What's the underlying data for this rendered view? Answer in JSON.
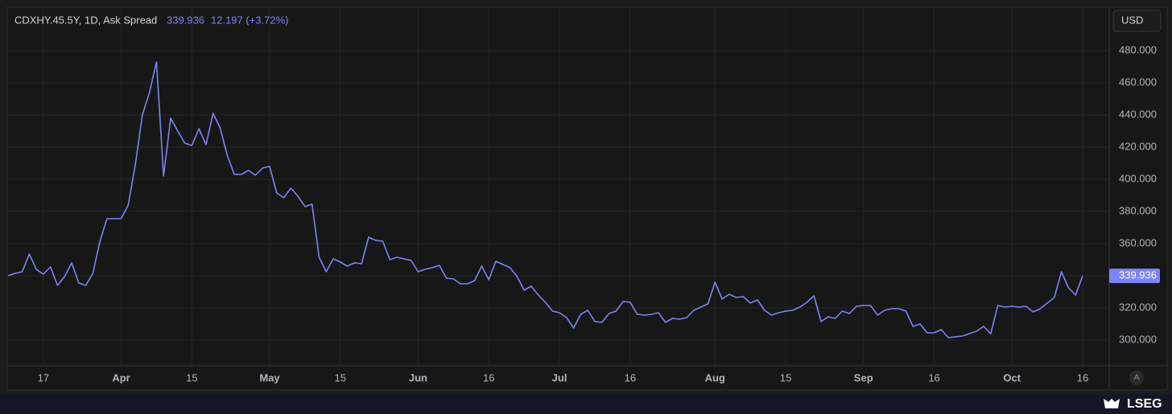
{
  "chart_data": {
    "type": "line",
    "title": "CDXHY.45.5Y, 1D, Ask Spread",
    "change": "12.197 (+3.72%)",
    "currency": "USD",
    "scale_button": "A",
    "brand": "LSEG",
    "categories": [
      null,
      null,
      null,
      null,
      null,
      "17",
      null,
      null,
      null,
      null,
      null,
      null,
      null,
      null,
      null,
      null,
      "Apr",
      null,
      null,
      null,
      null,
      null,
      null,
      null,
      null,
      null,
      "15",
      null,
      null,
      null,
      null,
      null,
      null,
      null,
      null,
      null,
      null,
      "May",
      null,
      null,
      null,
      null,
      null,
      null,
      null,
      null,
      null,
      "15",
      null,
      null,
      null,
      null,
      null,
      null,
      null,
      null,
      null,
      null,
      "Jun",
      null,
      null,
      null,
      null,
      null,
      null,
      null,
      null,
      null,
      "16",
      null,
      null,
      null,
      null,
      null,
      null,
      null,
      null,
      null,
      "Jul",
      null,
      null,
      null,
      null,
      null,
      null,
      null,
      null,
      null,
      "16",
      null,
      null,
      null,
      null,
      null,
      null,
      null,
      null,
      null,
      null,
      null,
      "Aug",
      null,
      null,
      null,
      null,
      null,
      null,
      null,
      null,
      null,
      "15",
      null,
      null,
      null,
      null,
      null,
      null,
      null,
      null,
      null,
      null,
      "Sep",
      null,
      null,
      null,
      null,
      null,
      null,
      null,
      null,
      null,
      "16",
      null,
      null,
      null,
      null,
      null,
      null,
      null,
      null,
      null,
      null,
      "Oct",
      null,
      null,
      null,
      null,
      null,
      null,
      null,
      null,
      null,
      "16"
    ],
    "series": [
      {
        "name": "CDXHY.45.5Y",
        "color": "#7b83f5",
        "values": [
          340,
          341.5,
          342.5,
          353.5,
          344,
          341,
          345.5,
          334,
          339.5,
          348,
          335.5,
          334,
          341.5,
          361.5,
          375.5,
          375.5,
          375.5,
          384,
          409,
          440,
          454,
          473,
          402,
          438,
          430,
          422.5,
          421,
          431.5,
          421.5,
          441,
          432,
          415,
          403,
          403,
          405.5,
          402.5,
          407,
          408,
          391.5,
          388.5,
          394.5,
          389.5,
          383,
          384.5,
          351.5,
          342.5,
          350.5,
          348.5,
          346,
          348,
          347.5,
          364,
          362,
          361.5,
          350,
          351.5,
          350.5,
          349.5,
          342.5,
          344,
          345,
          346.5,
          338.5,
          338,
          335,
          335,
          337,
          346,
          337.5,
          349,
          347,
          345,
          339.5,
          331,
          333.5,
          328,
          323.5,
          318,
          317,
          314,
          307.5,
          316,
          318.5,
          311.5,
          311,
          316.5,
          318,
          324,
          323.5,
          316,
          315.5,
          316,
          317,
          311,
          313.5,
          313,
          314,
          318.5,
          320.5,
          322.5,
          336,
          325.5,
          328.5,
          326.5,
          327,
          323,
          325,
          318.5,
          315.5,
          317,
          318,
          318.5,
          320.5,
          323.5,
          327.5,
          311.5,
          314.5,
          313.5,
          318,
          316.5,
          321,
          321.5,
          321.5,
          315.5,
          318.5,
          319.5,
          319.5,
          318,
          308.5,
          310,
          304.5,
          304.5,
          306.5,
          301.5,
          302,
          302.5,
          304,
          305.5,
          308.5,
          304,
          321.5,
          320.5,
          321,
          320.5,
          321,
          317.5,
          319.5,
          323,
          326.5,
          342.5,
          332.5,
          328,
          339.936
        ]
      }
    ],
    "ylim": [
      284,
      506.5
    ],
    "yticks": [
      {
        "value": 300,
        "label": "300.000"
      },
      {
        "value": 320,
        "label": "320.000"
      },
      {
        "value": 340,
        "label": "340.000"
      },
      {
        "value": 360,
        "label": "360.000"
      },
      {
        "value": 380,
        "label": "380.000"
      },
      {
        "value": 400,
        "label": "400.000"
      },
      {
        "value": 420,
        "label": "420.000"
      },
      {
        "value": 440,
        "label": "440.000"
      },
      {
        "value": 460,
        "label": "460.000"
      },
      {
        "value": 480,
        "label": "480.000"
      }
    ],
    "grid": true
  }
}
